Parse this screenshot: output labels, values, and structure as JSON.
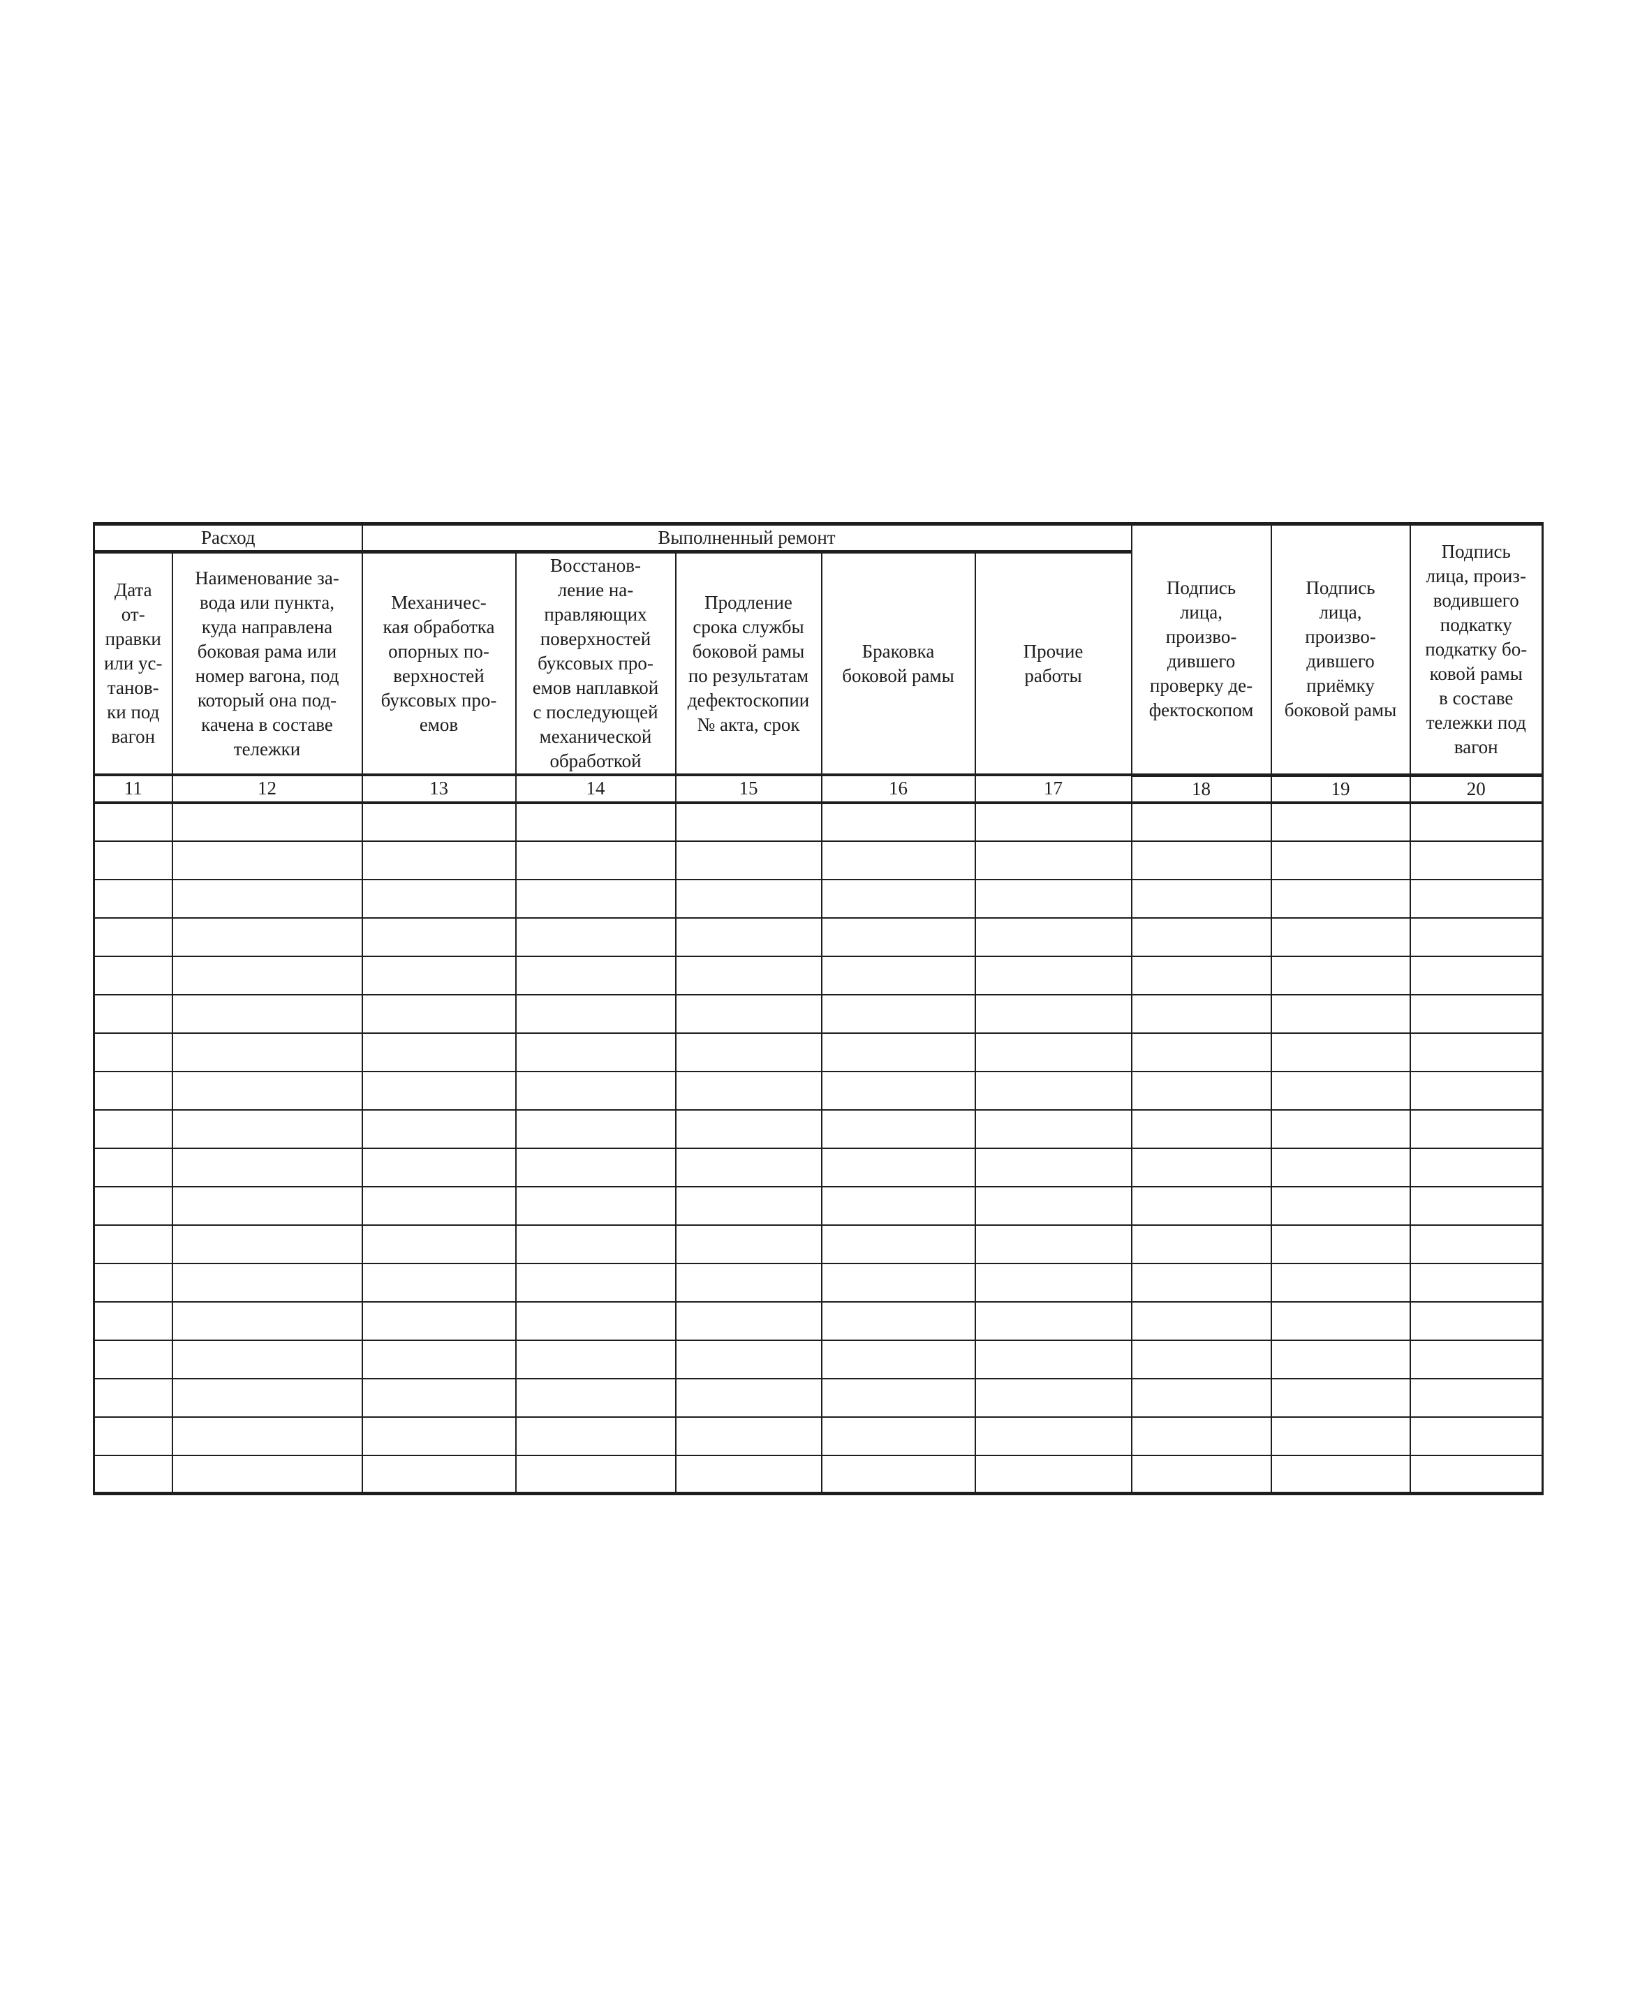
{
  "page": {
    "background": "#ffffff",
    "ink": "#1e1e1e"
  },
  "table": {
    "group_headers": [
      {
        "label": "Расход",
        "spans_columns": [
          "11",
          "12"
        ]
      },
      {
        "label": "Выполненный ремонт",
        "spans_columns": [
          "13",
          "14",
          "15",
          "16",
          "17"
        ]
      }
    ],
    "columns": [
      {
        "number": "11",
        "header": "Дата\nот-\nправки\nили ус-\nтанов-\nки под\nвагон"
      },
      {
        "number": "12",
        "header": "Наименование за-\nвода или пункта,\nкуда направлена\nбоковая рама или\nномер вагона, под\nкоторый она под-\nкачена в составе\nтележки"
      },
      {
        "number": "13",
        "header": "Механичес-\nкая обработка\nопорных по-\nверхностей\nбуксовых про-\nемов"
      },
      {
        "number": "14",
        "header": "Восстанов-\nление на-\nправляющих\nповерхностей\nбуксовых про-\nемов наплавкой\nс последующей\nмеханической\nобработкой"
      },
      {
        "number": "15",
        "header": "Продление\nсрока службы\nбоковой рамы\nпо результатам\nдефектоскопии\n№ акта, срок"
      },
      {
        "number": "16",
        "header": "Браковка\nбоковой рамы"
      },
      {
        "number": "17",
        "header": "Прочие\nработы"
      },
      {
        "number": "18",
        "header": "Подпись\nлица,\nпроизво-\nдившего\nпроверку де-\nфектоскопом"
      },
      {
        "number": "19",
        "header": "Подпись\nлица,\nпроизво-\nдившего\nприёмку\nбоковой рамы"
      },
      {
        "number": "20",
        "header": "Подпись\nлица, произ-\nводившего\nподкатку\nподкатку бо-\nковой рамы\nв составе\nтележки под\nвагон"
      }
    ],
    "empty_row_count": 18
  }
}
